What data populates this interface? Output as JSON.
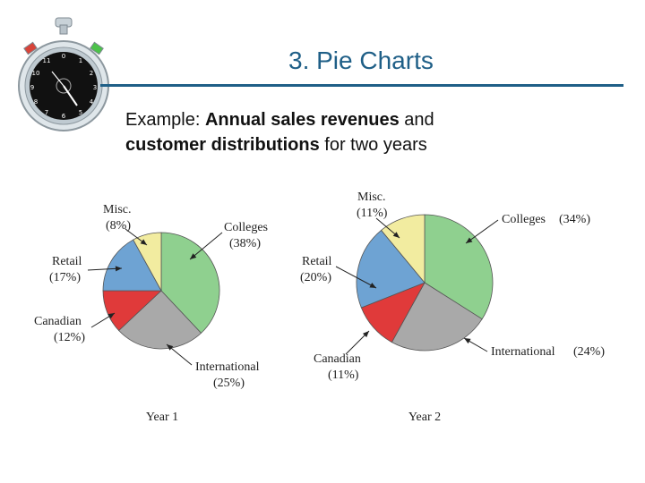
{
  "slide": {
    "title": "3. Pie Charts",
    "subtitle_prefix": "Example: ",
    "subtitle_bold1": "Annual sales revenues",
    "subtitle_mid": " and",
    "subtitle_bold2": "customer distributions",
    "subtitle_suffix": " for two years"
  },
  "stopwatch_icon": "stopwatch-icon",
  "chart_data": [
    {
      "type": "pie",
      "title": "Year 1",
      "slices": [
        {
          "name": "Colleges",
          "value": 38,
          "label": "(38%)",
          "color": "#8fd08f"
        },
        {
          "name": "International",
          "value": 25,
          "label": "(25%)",
          "color": "#a9a9a9"
        },
        {
          "name": "Canadian",
          "value": 12,
          "label": "(12%)",
          "color": "#e03a3a"
        },
        {
          "name": "Retail",
          "value": 17,
          "label": "(17%)",
          "color": "#6ea3d3"
        },
        {
          "name": "Misc.",
          "value": 8,
          "label": "(8%)",
          "color": "#f2eca0"
        }
      ]
    },
    {
      "type": "pie",
      "title": "Year 2",
      "slices": [
        {
          "name": "Colleges",
          "value": 34,
          "label": "(34%)",
          "color": "#8fd08f"
        },
        {
          "name": "International",
          "value": 24,
          "label": "(24%)",
          "color": "#a9a9a9"
        },
        {
          "name": "Canadian",
          "value": 11,
          "label": "(11%)",
          "color": "#e03a3a"
        },
        {
          "name": "Retail",
          "value": 20,
          "label": "(20%)",
          "color": "#6ea3d3"
        },
        {
          "name": "Misc.",
          "value": 11,
          "label": "(11%)",
          "color": "#f2eca0"
        }
      ]
    }
  ]
}
